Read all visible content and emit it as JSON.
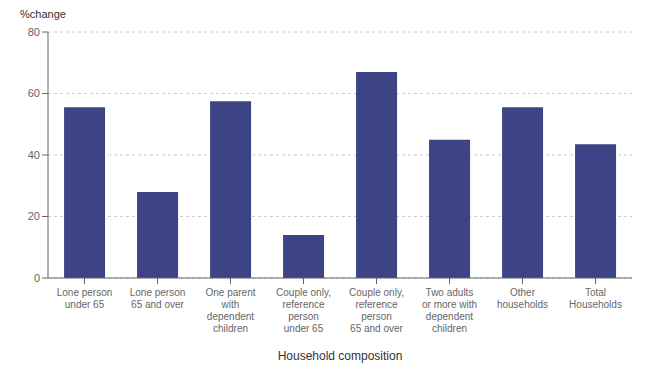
{
  "chart_data": {
    "type": "bar",
    "categories": [
      "Lone person\nunder 65",
      "Lone person\n65 and over",
      "One parent\nwith\ndependent\nchildren",
      "Couple only,\nreference\nperson\nunder 65",
      "Couple only,\nreference\nperson\n65 and over",
      "Two adults\nor more with\ndependent\nchildren",
      "Other\nhouseholds",
      "Total\nHouseholds"
    ],
    "values": [
      55.5,
      28.0,
      57.5,
      14.0,
      67.0,
      45.0,
      55.5,
      43.5
    ],
    "color": "#3D4485",
    "ylabel": "%change",
    "xlabel": "Household composition",
    "ylim": [
      0,
      80
    ],
    "yticks": [
      0,
      20,
      40,
      60,
      80
    ],
    "grid": true
  }
}
